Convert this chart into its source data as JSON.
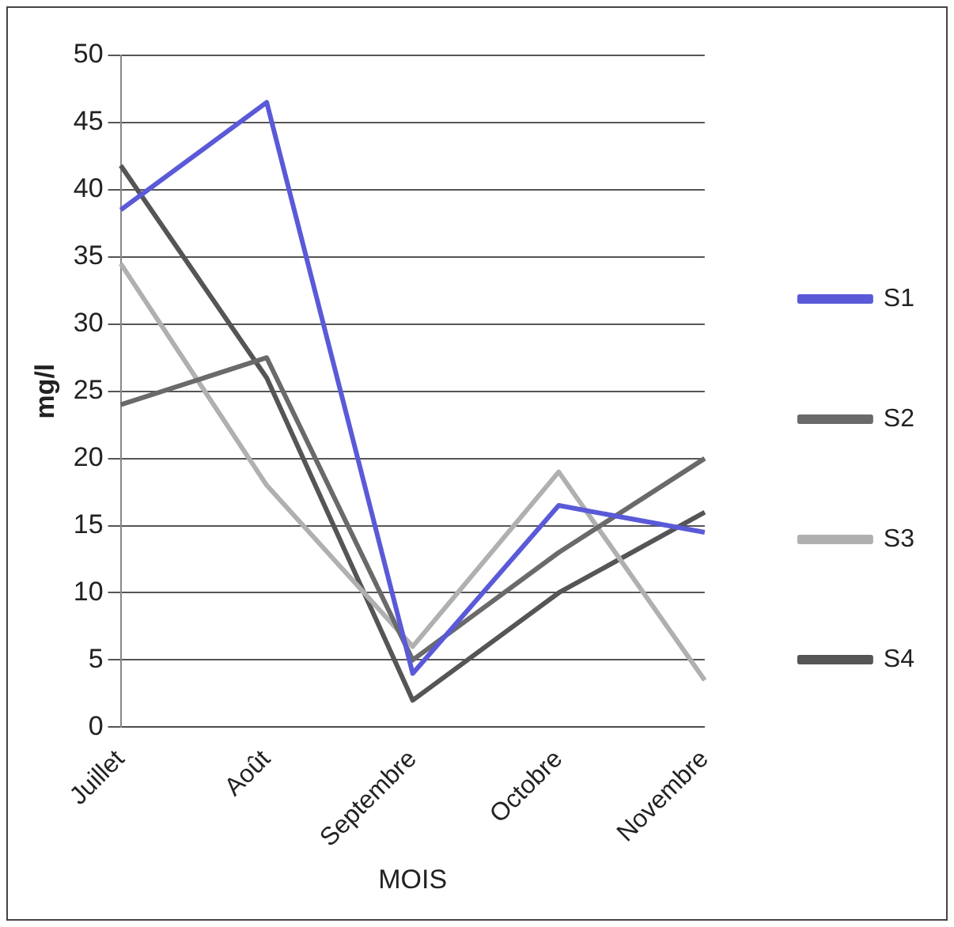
{
  "chart_data": {
    "type": "line",
    "xlabel": "MOIS",
    "ylabel": "mg/l",
    "categories": [
      "Juillet",
      "Août",
      "Septembre",
      "Octobre",
      "Novembre"
    ],
    "series": [
      {
        "name": "S1",
        "color": "#5a5ad8",
        "values": [
          38.5,
          46.5,
          4,
          16.5,
          14.5
        ]
      },
      {
        "name": "S2",
        "color": "#6a6a6a",
        "values": [
          24,
          27.5,
          5,
          13,
          20
        ]
      },
      {
        "name": "S3",
        "color": "#b0b0b0",
        "values": [
          34.5,
          18,
          6,
          19,
          3.5
        ]
      },
      {
        "name": "S4",
        "color": "#555555",
        "values": [
          41.8,
          26,
          2,
          10,
          16
        ]
      }
    ],
    "ylim": [
      0,
      50
    ],
    "yticks": [
      0,
      5,
      10,
      15,
      20,
      25,
      30,
      35,
      40,
      45,
      50
    ],
    "grid": "y",
    "legend": "right",
    "marker": "none",
    "line_style": "solid"
  }
}
